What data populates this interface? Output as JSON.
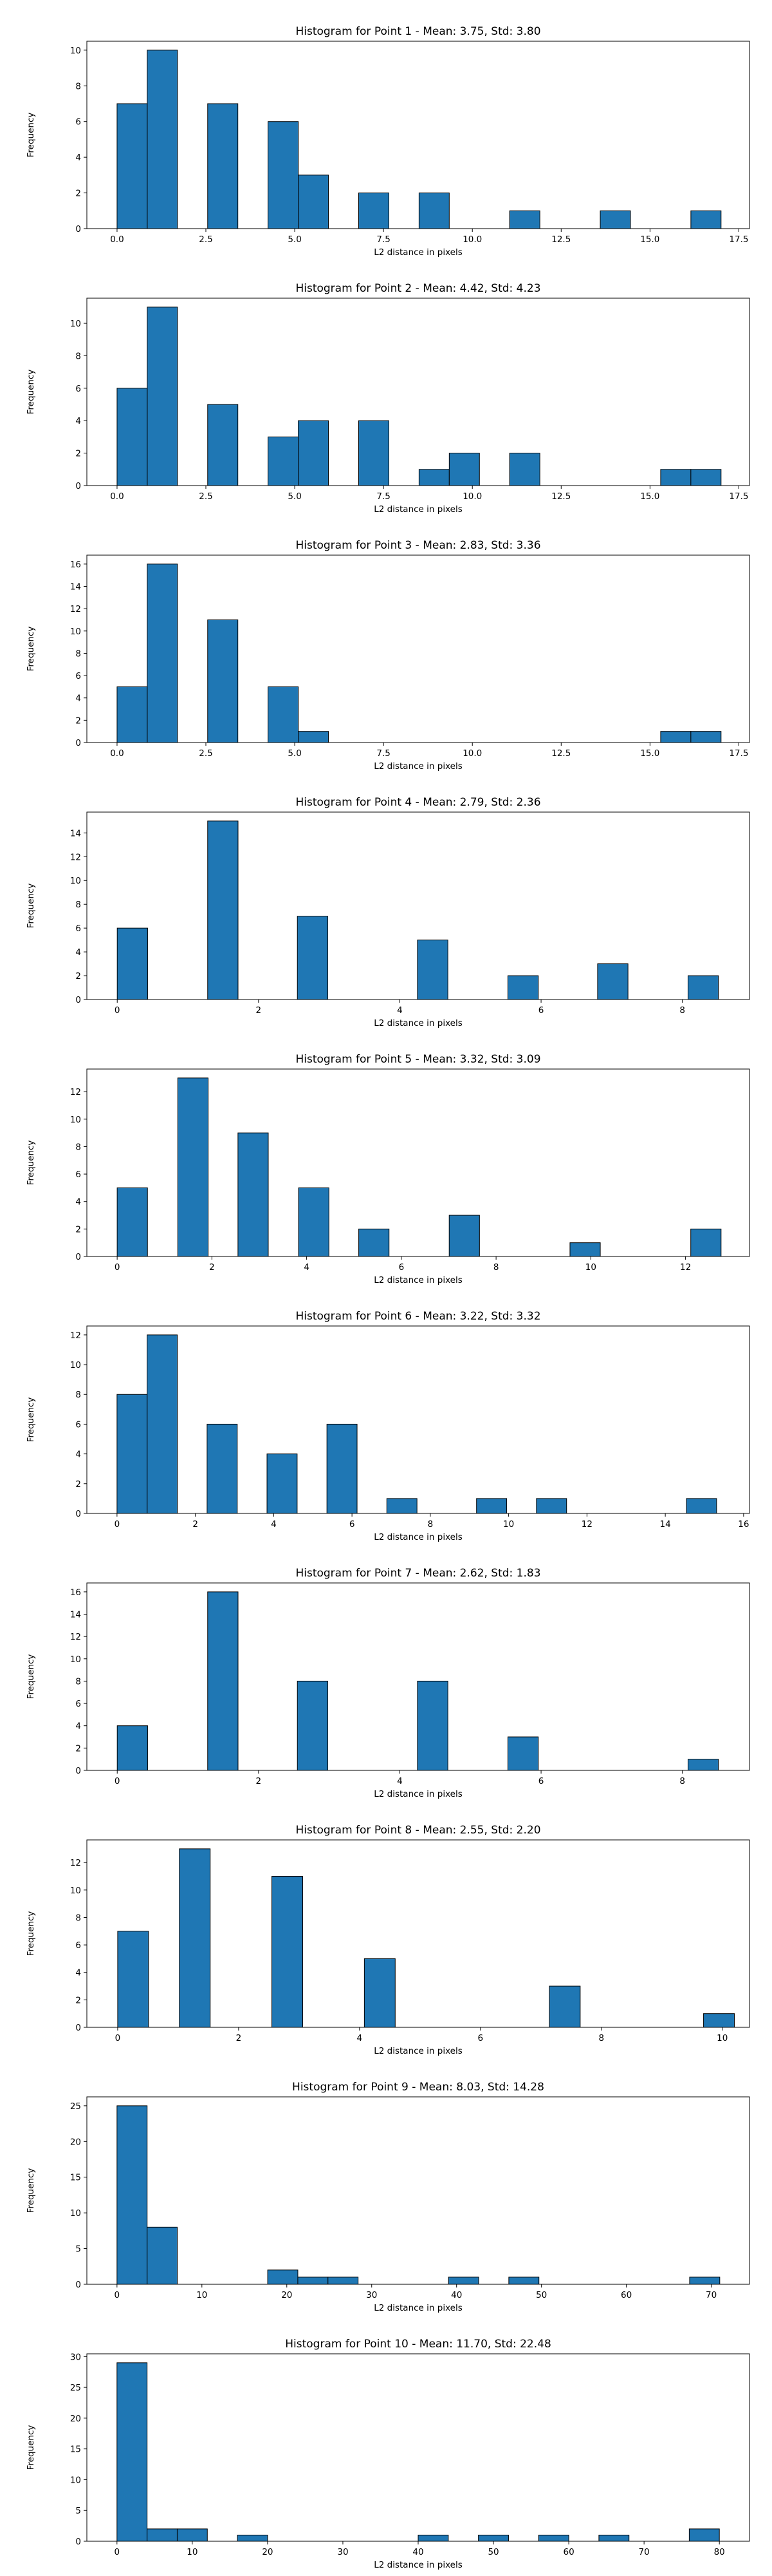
{
  "theme": {
    "bar_color": "#1f77b4",
    "edge_color": "#000000",
    "background": "#ffffff"
  },
  "chart_data": [
    {
      "type": "bar",
      "title": "Histogram for Point 1 - Mean: 3.75, Std: 3.80",
      "xlabel": "L2 distance in pixels",
      "ylabel": "Frequency",
      "xlim": [
        -0.85,
        17.8
      ],
      "ylim": [
        0,
        10.5
      ],
      "xticks": [
        0,
        2.5,
        5,
        7.5,
        10,
        12.5,
        15,
        17.5
      ],
      "xtick_labels": [
        "0.0",
        "2.5",
        "5.0",
        "7.5",
        "10.0",
        "12.5",
        "15.0",
        "17.5"
      ],
      "yticks": [
        0,
        2,
        4,
        6,
        8,
        10
      ],
      "bin_width": 0.85,
      "bins": [
        {
          "x": 0.0,
          "count": 7
        },
        {
          "x": 0.85,
          "count": 10
        },
        {
          "x": 2.55,
          "count": 7
        },
        {
          "x": 4.25,
          "count": 6
        },
        {
          "x": 5.1,
          "count": 3
        },
        {
          "x": 6.8,
          "count": 2
        },
        {
          "x": 8.5,
          "count": 2
        },
        {
          "x": 11.05,
          "count": 1
        },
        {
          "x": 13.6,
          "count": 1
        },
        {
          "x": 16.15,
          "count": 1
        }
      ],
      "grid": false
    },
    {
      "type": "bar",
      "title": "Histogram for Point 2 - Mean: 4.42, Std: 4.23",
      "xlabel": "L2 distance in pixels",
      "ylabel": "Frequency",
      "xlim": [
        -0.85,
        17.8
      ],
      "ylim": [
        0,
        11.55
      ],
      "xticks": [
        0,
        2.5,
        5,
        7.5,
        10,
        12.5,
        15,
        17.5
      ],
      "xtick_labels": [
        "0.0",
        "2.5",
        "5.0",
        "7.5",
        "10.0",
        "12.5",
        "15.0",
        "17.5"
      ],
      "yticks": [
        0,
        2,
        4,
        6,
        8,
        10
      ],
      "bin_width": 0.85,
      "bins": [
        {
          "x": 0.0,
          "count": 6
        },
        {
          "x": 0.85,
          "count": 11
        },
        {
          "x": 2.55,
          "count": 5
        },
        {
          "x": 4.25,
          "count": 3
        },
        {
          "x": 5.1,
          "count": 4
        },
        {
          "x": 6.8,
          "count": 4
        },
        {
          "x": 8.5,
          "count": 1
        },
        {
          "x": 9.35,
          "count": 2
        },
        {
          "x": 11.05,
          "count": 2
        },
        {
          "x": 15.3,
          "count": 1
        },
        {
          "x": 16.15,
          "count": 1
        }
      ],
      "grid": false
    },
    {
      "type": "bar",
      "title": "Histogram for Point 3 - Mean: 2.83, Std: 3.36",
      "xlabel": "L2 distance in pixels",
      "ylabel": "Frequency",
      "xlim": [
        -0.85,
        17.8
      ],
      "ylim": [
        0,
        16.8
      ],
      "xticks": [
        0,
        2.5,
        5,
        7.5,
        10,
        12.5,
        15,
        17.5
      ],
      "xtick_labels": [
        "0.0",
        "2.5",
        "5.0",
        "7.5",
        "10.0",
        "12.5",
        "15.0",
        "17.5"
      ],
      "yticks": [
        0,
        2,
        4,
        6,
        8,
        10,
        12,
        14,
        16
      ],
      "bin_width": 0.85,
      "bins": [
        {
          "x": 0.0,
          "count": 5
        },
        {
          "x": 0.85,
          "count": 16
        },
        {
          "x": 2.55,
          "count": 11
        },
        {
          "x": 4.25,
          "count": 5
        },
        {
          "x": 5.1,
          "count": 1
        },
        {
          "x": 15.3,
          "count": 1
        },
        {
          "x": 16.15,
          "count": 1
        }
      ],
      "grid": false
    },
    {
      "type": "bar",
      "title": "Histogram for Point 4 - Mean: 2.79, Std: 2.36",
      "xlabel": "L2 distance in pixels",
      "ylabel": "Frequency",
      "xlim": [
        -0.43,
        8.95
      ],
      "ylim": [
        0,
        15.75
      ],
      "xticks": [
        0,
        2,
        4,
        6,
        8
      ],
      "xtick_labels": [
        "0",
        "2",
        "4",
        "6",
        "8"
      ],
      "yticks": [
        0,
        2,
        4,
        6,
        8,
        10,
        12,
        14
      ],
      "bin_width": 0.43,
      "bins": [
        {
          "x": 0.0,
          "count": 6
        },
        {
          "x": 1.28,
          "count": 15
        },
        {
          "x": 2.55,
          "count": 7
        },
        {
          "x": 4.25,
          "count": 5
        },
        {
          "x": 5.53,
          "count": 2
        },
        {
          "x": 6.8,
          "count": 3
        },
        {
          "x": 8.08,
          "count": 2
        }
      ],
      "grid": false
    },
    {
      "type": "bar",
      "title": "Histogram for Point 5 - Mean: 3.32, Std: 3.09",
      "xlabel": "L2 distance in pixels",
      "ylabel": "Frequency",
      "xlim": [
        -0.64,
        13.35
      ],
      "ylim": [
        0,
        13.65
      ],
      "xticks": [
        0,
        2,
        4,
        6,
        8,
        10,
        12
      ],
      "xtick_labels": [
        "0",
        "2",
        "4",
        "6",
        "8",
        "10",
        "12"
      ],
      "yticks": [
        0,
        2,
        4,
        6,
        8,
        10,
        12
      ],
      "bin_width": 0.64,
      "bins": [
        {
          "x": 0.0,
          "count": 5
        },
        {
          "x": 1.28,
          "count": 13
        },
        {
          "x": 2.55,
          "count": 9
        },
        {
          "x": 3.83,
          "count": 5
        },
        {
          "x": 5.1,
          "count": 2
        },
        {
          "x": 7.01,
          "count": 3
        },
        {
          "x": 9.56,
          "count": 1
        },
        {
          "x": 12.11,
          "count": 2
        }
      ],
      "grid": false
    },
    {
      "type": "bar",
      "title": "Histogram for Point 6 - Mean: 3.22, Std: 3.32",
      "xlabel": "L2 distance in pixels",
      "ylabel": "Frequency",
      "xlim": [
        -0.77,
        16.15
      ],
      "ylim": [
        0,
        12.6
      ],
      "xticks": [
        0,
        2,
        4,
        6,
        8,
        10,
        12,
        14,
        16
      ],
      "xtick_labels": [
        "0",
        "2",
        "4",
        "6",
        "8",
        "10",
        "12",
        "14",
        "16"
      ],
      "yticks": [
        0,
        2,
        4,
        6,
        8,
        10,
        12
      ],
      "bin_width": 0.77,
      "bins": [
        {
          "x": 0.0,
          "count": 8
        },
        {
          "x": 0.77,
          "count": 12
        },
        {
          "x": 2.3,
          "count": 6
        },
        {
          "x": 3.83,
          "count": 4
        },
        {
          "x": 5.36,
          "count": 6
        },
        {
          "x": 6.89,
          "count": 1
        },
        {
          "x": 9.18,
          "count": 1
        },
        {
          "x": 10.71,
          "count": 1
        },
        {
          "x": 14.54,
          "count": 1
        }
      ],
      "grid": false
    },
    {
      "type": "bar",
      "title": "Histogram for Point 7 - Mean: 2.62, Std: 1.83",
      "xlabel": "L2 distance in pixels",
      "ylabel": "Frequency",
      "xlim": [
        -0.43,
        8.95
      ],
      "ylim": [
        0,
        16.8
      ],
      "xticks": [
        0,
        2,
        4,
        6,
        8
      ],
      "xtick_labels": [
        "0",
        "2",
        "4",
        "6",
        "8"
      ],
      "yticks": [
        0,
        2,
        4,
        6,
        8,
        10,
        12,
        14,
        16
      ],
      "bin_width": 0.43,
      "bins": [
        {
          "x": 0.0,
          "count": 4
        },
        {
          "x": 1.28,
          "count": 16
        },
        {
          "x": 2.55,
          "count": 8
        },
        {
          "x": 4.25,
          "count": 8
        },
        {
          "x": 5.53,
          "count": 3
        },
        {
          "x": 8.08,
          "count": 1
        }
      ],
      "grid": false
    },
    {
      "type": "bar",
      "title": "Histogram for Point 8 - Mean: 2.55, Std: 2.20",
      "xlabel": "L2 distance in pixels",
      "ylabel": "Frequency",
      "xlim": [
        -0.51,
        10.45
      ],
      "ylim": [
        0,
        13.65
      ],
      "xticks": [
        0,
        2,
        4,
        6,
        8,
        10
      ],
      "xtick_labels": [
        "0",
        "2",
        "4",
        "6",
        "8",
        "10"
      ],
      "yticks": [
        0,
        2,
        4,
        6,
        8,
        10,
        12
      ],
      "bin_width": 0.51,
      "bins": [
        {
          "x": 0.0,
          "count": 7
        },
        {
          "x": 1.02,
          "count": 13
        },
        {
          "x": 2.55,
          "count": 11
        },
        {
          "x": 4.08,
          "count": 5
        },
        {
          "x": 7.14,
          "count": 3
        },
        {
          "x": 9.69,
          "count": 1
        }
      ],
      "grid": false
    },
    {
      "type": "bar",
      "title": "Histogram for Point 9 - Mean: 8.03, Std: 14.28",
      "xlabel": "L2 distance in pixels",
      "ylabel": "Frequency",
      "xlim": [
        -3.55,
        74.5
      ],
      "ylim": [
        0,
        26.25
      ],
      "xticks": [
        0,
        10,
        20,
        30,
        40,
        50,
        60,
        70
      ],
      "xtick_labels": [
        "0",
        "10",
        "20",
        "30",
        "40",
        "50",
        "60",
        "70"
      ],
      "yticks": [
        0,
        5,
        10,
        15,
        20,
        25
      ],
      "bin_width": 3.55,
      "bins": [
        {
          "x": 0.0,
          "count": 25
        },
        {
          "x": 3.55,
          "count": 8
        },
        {
          "x": 17.75,
          "count": 2
        },
        {
          "x": 21.3,
          "count": 1
        },
        {
          "x": 24.85,
          "count": 1
        },
        {
          "x": 39.05,
          "count": 1
        },
        {
          "x": 46.15,
          "count": 1
        },
        {
          "x": 67.45,
          "count": 1
        }
      ],
      "grid": false
    },
    {
      "type": "bar",
      "title": "Histogram for Point 10 - Mean: 11.70, Std: 22.48",
      "xlabel": "L2 distance in pixels",
      "ylabel": "Frequency",
      "xlim": [
        -4.0,
        84.0
      ],
      "ylim": [
        0,
        30.45
      ],
      "xticks": [
        0,
        10,
        20,
        30,
        40,
        50,
        60,
        70,
        80
      ],
      "xtick_labels": [
        "0",
        "10",
        "20",
        "30",
        "40",
        "50",
        "60",
        "70",
        "80"
      ],
      "yticks": [
        0,
        5,
        10,
        15,
        20,
        25,
        30
      ],
      "bin_width": 4.0,
      "bins": [
        {
          "x": 0.0,
          "count": 29
        },
        {
          "x": 4.0,
          "count": 2
        },
        {
          "x": 8.0,
          "count": 2
        },
        {
          "x": 16.0,
          "count": 1
        },
        {
          "x": 40.0,
          "count": 1
        },
        {
          "x": 48.0,
          "count": 1
        },
        {
          "x": 56.0,
          "count": 1
        },
        {
          "x": 64.0,
          "count": 1
        },
        {
          "x": 76.0,
          "count": 2
        }
      ],
      "grid": false
    }
  ]
}
